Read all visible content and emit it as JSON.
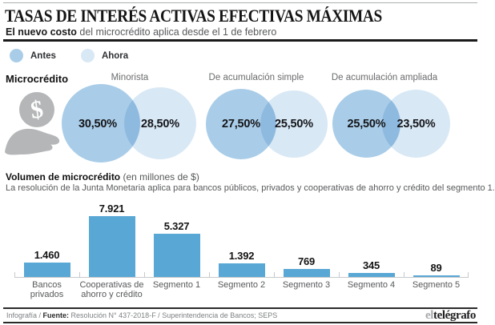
{
  "header": {
    "title": "TASAS DE INTERÉS ACTIVAS EFECTIVAS MÁXIMAS",
    "subtitle_bold": "El nuevo costo",
    "subtitle_rest": " del microcrédito aplica desde el 1 de febrero"
  },
  "legend": {
    "antes_label": "Antes",
    "ahora_label": "Ahora"
  },
  "colors": {
    "antes_circle": "#a9cde8",
    "ahora_circle": "#d8e8f5",
    "bar": "#58a7d5",
    "icon_gray": "#b4b6b8"
  },
  "rates": {
    "section_label": "Microcrédito",
    "groups": [
      {
        "name": "Minorista",
        "antes": "30,50%",
        "ahora": "28,50%"
      },
      {
        "name": "De acumulación simple",
        "antes": "27,50%",
        "ahora": "25,50%"
      },
      {
        "name": "De acumulación ampliada",
        "antes": "25,50%",
        "ahora": "23,50%"
      }
    ]
  },
  "volume_section": {
    "title_bold": "Volumen de microcrédito",
    "title_rest": " (en millones de $)",
    "description": "La resolución de la Junta Monetaria aplica para bancos públicos, privados y cooperativas de ahorro y crédito del segmento 1."
  },
  "chart_data": {
    "type": "bar",
    "title": "Volumen de microcrédito (en millones de $)",
    "xlabel": "",
    "ylabel": "millones de $",
    "categories": [
      "Bancos privados",
      "Cooperativas de ahorro y crédito",
      "Segmento 1",
      "Segmento 2",
      "Segmento 3",
      "Segmento 4",
      "Segmento 5"
    ],
    "category_lines": [
      [
        "Bancos",
        "privados"
      ],
      [
        "Cooperativas de",
        "ahorro y crédito"
      ],
      [
        "Segmento 1"
      ],
      [
        "Segmento 2"
      ],
      [
        "Segmento 3"
      ],
      [
        "Segmento 4"
      ],
      [
        "Segmento 5"
      ]
    ],
    "values": [
      1460,
      7921,
      5327,
      1392,
      769,
      345,
      89
    ],
    "value_labels": [
      "1.460",
      "7.921",
      "5.327",
      "1.392",
      "769",
      "345",
      "89"
    ],
    "ylim": [
      0,
      8000
    ],
    "grid": false,
    "legend_position": "none"
  },
  "footer": {
    "left_prefix": "Infografía / ",
    "source_label": "Fuente:",
    "source_text": " Resolución N° 437-2018-F / Superintendencia de Bancos; SEPS",
    "logo_light": "el",
    "logo_dark": "telégrafo"
  }
}
